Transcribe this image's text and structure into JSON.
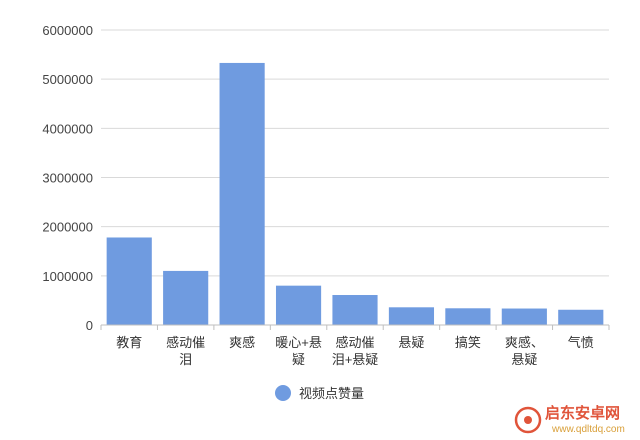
{
  "chart_data": {
    "type": "bar",
    "categories": [
      [
        "教育"
      ],
      [
        "感动催",
        "泪"
      ],
      [
        "爽感"
      ],
      [
        "暖心+悬",
        "疑"
      ],
      [
        "感动催",
        "泪+悬疑"
      ],
      [
        "悬疑"
      ],
      [
        "搞笑"
      ],
      [
        "爽感、",
        "悬疑"
      ],
      [
        "气愤"
      ]
    ],
    "series": [
      {
        "name": "视频点赞量",
        "color": "#6f9be0",
        "values": [
          1780000,
          1100000,
          5330000,
          800000,
          610000,
          360000,
          340000,
          335000,
          310000
        ]
      }
    ],
    "ylim": [
      0,
      6000000
    ],
    "yticks": [
      0,
      1000000,
      2000000,
      3000000,
      4000000,
      5000000,
      6000000
    ],
    "grid": true,
    "legend": "bottom"
  },
  "watermark": {
    "brand": "启东安卓网",
    "url": "www.qdltdq.com"
  }
}
